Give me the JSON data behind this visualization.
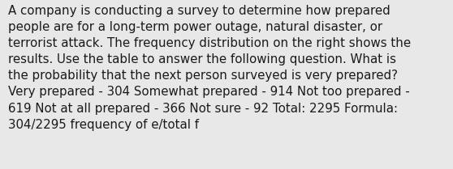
{
  "lines": [
    "A company is conducting a survey to determine how prepared",
    "people are for a long-term power outage, natural disaster, or",
    "terrorist attack. The frequency distribution on the right shows the",
    "results. Use the table to answer the following question. What is",
    "the probability that the next person surveyed is very prepared?",
    "Very prepared - 304 Somewhat prepared - 914 Not too prepared -",
    "619 Not at all prepared - 366 Not sure - 92 Total: 2295 Formula:",
    "304/2295 frequency of e/total f"
  ],
  "background_color": "#e8e8e8",
  "text_color": "#1a1a1a",
  "font_size": 10.8,
  "fig_width": 5.58,
  "fig_height": 2.09,
  "dpi": 100
}
